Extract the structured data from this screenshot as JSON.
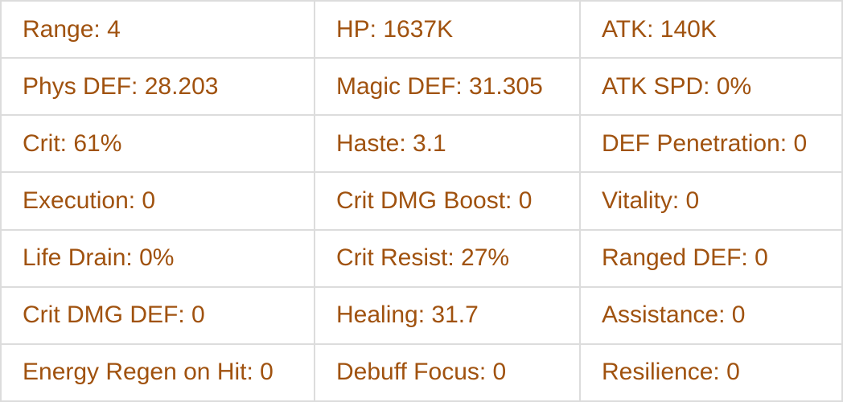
{
  "stats": {
    "rows": [
      [
        "Range: 4",
        "HP: 1637K",
        "ATK: 140K"
      ],
      [
        "Phys DEF: 28.203",
        "Magic DEF: 31.305",
        "ATK SPD: 0%"
      ],
      [
        "Crit: 61%",
        "Haste: 3.1",
        "DEF Penetration: 0"
      ],
      [
        "Execution: 0",
        "Crit DMG Boost: 0",
        "Vitality: 0"
      ],
      [
        "Life Drain: 0%",
        "Crit Resist: 27%",
        "Ranged DEF: 0"
      ],
      [
        "Crit DMG DEF: 0",
        "Healing: 31.7",
        "Assistance: 0"
      ],
      [
        "Energy Regen on Hit: 0",
        "Debuff Focus: 0",
        "Resilience: 0"
      ]
    ]
  },
  "colors": {
    "text": "#a0520f",
    "border": "#dcdcdc"
  }
}
